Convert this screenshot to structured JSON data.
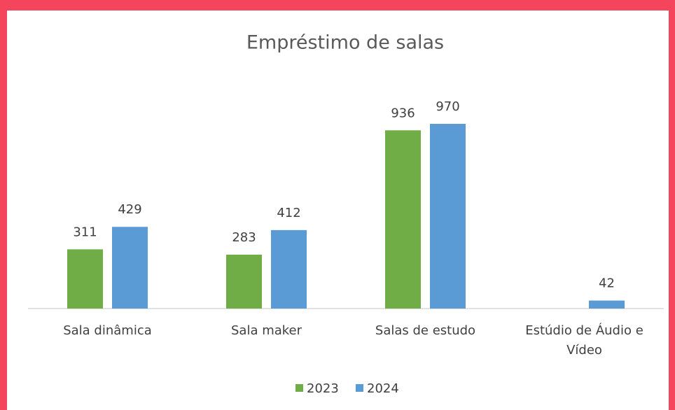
{
  "chart_data": {
    "type": "bar",
    "title": "Empréstimo de salas",
    "categories": [
      "Sala dinâmica",
      "Sala maker",
      "Salas de estudo",
      "Estúdio de Áudio e Vídeo"
    ],
    "series": [
      {
        "name": "2023",
        "color": "#70ad47",
        "values": [
          311,
          283,
          936,
          null
        ]
      },
      {
        "name": "2024",
        "color": "#5b9bd5",
        "values": [
          429,
          412,
          970,
          42
        ]
      }
    ],
    "legend": "bottom"
  }
}
